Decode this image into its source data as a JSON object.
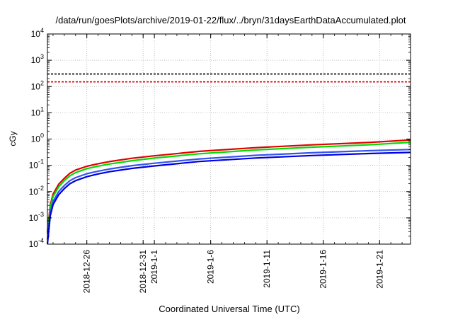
{
  "chart_data": {
    "type": "line",
    "title": "/data/run/goesPlots/archive/2019-01-22/flux/../bryn/31daysEarthDataAccumulated.plot",
    "xlabel": "Coordinated Universal Time (UTC)",
    "ylabel": "cGy",
    "yscale": "log",
    "ylim": [
      0.0001,
      10000
    ],
    "xlim": [
      "2018-12-22T12:00",
      "2019-01-23T18:00"
    ],
    "y_ticks": [
      {
        "value": 0.0001,
        "base": "10",
        "exp": "-4"
      },
      {
        "value": 0.001,
        "base": "10",
        "exp": "-3"
      },
      {
        "value": 0.01,
        "base": "10",
        "exp": "-2"
      },
      {
        "value": 0.1,
        "base": "10",
        "exp": "-1"
      },
      {
        "value": 1,
        "base": "10",
        "exp": "0"
      },
      {
        "value": 10,
        "base": "10",
        "exp": "1"
      },
      {
        "value": 100,
        "base": "10",
        "exp": "2"
      },
      {
        "value": 1000,
        "base": "10",
        "exp": "3"
      },
      {
        "value": 10000,
        "base": "10",
        "exp": "4"
      }
    ],
    "x_ticks": [
      {
        "value": "2018-12-26",
        "label": "2018-12-26"
      },
      {
        "value": "2018-12-31",
        "label": "2018-12-31"
      },
      {
        "value": "2019-01-01",
        "label": "2019-1-1"
      },
      {
        "value": "2019-01-06",
        "label": "2019-1-6"
      },
      {
        "value": "2019-01-11",
        "label": "2019-1-11"
      },
      {
        "value": "2019-01-16",
        "label": "2019-1-16"
      },
      {
        "value": "2019-01-21",
        "label": "2019-1-21"
      }
    ],
    "grid": true,
    "reference_lines": [
      {
        "y": 300,
        "color": "#000000",
        "dash": "dashed"
      },
      {
        "y": 150,
        "color": "#e00000",
        "dash": "dashed"
      }
    ],
    "series": [
      {
        "color": "#e00000",
        "x": [
          "2018-12-22T12:00",
          "2018-12-22T18:00",
          "2018-12-23T00:00",
          "2018-12-23T12:00",
          "2018-12-24T00:00",
          "2018-12-24T12:00",
          "2018-12-25T00:00",
          "2018-12-26T00:00",
          "2018-12-27T00:00",
          "2018-12-28T00:00",
          "2018-12-30T00:00",
          "2019-01-01T00:00",
          "2019-01-05T00:00",
          "2019-01-10T00:00",
          "2019-01-15T00:00",
          "2019-01-20T00:00",
          "2019-01-23T18:00"
        ],
        "y": [
          0.0003,
          0.003,
          0.008,
          0.019,
          0.032,
          0.05,
          0.066,
          0.092,
          0.115,
          0.138,
          0.185,
          0.23,
          0.34,
          0.47,
          0.6,
          0.74,
          0.92
        ]
      },
      {
        "color": "#00dd00",
        "x": [
          "2018-12-22T12:00",
          "2018-12-22T18:00",
          "2018-12-23T00:00",
          "2018-12-23T12:00",
          "2018-12-24T00:00",
          "2018-12-24T12:00",
          "2018-12-25T00:00",
          "2018-12-26T00:00",
          "2018-12-27T00:00",
          "2018-12-28T00:00",
          "2018-12-30T00:00",
          "2019-01-01T00:00",
          "2019-01-05T00:00",
          "2019-01-10T00:00",
          "2019-01-15T00:00",
          "2019-01-20T00:00",
          "2019-01-23T18:00"
        ],
        "y": [
          0.00025,
          0.0025,
          0.0065,
          0.015,
          0.026,
          0.04,
          0.053,
          0.075,
          0.093,
          0.112,
          0.15,
          0.188,
          0.275,
          0.385,
          0.49,
          0.6,
          0.75
        ]
      },
      {
        "color": "#3355ee",
        "x": [
          "2018-12-22T12:00",
          "2018-12-22T18:00",
          "2018-12-23T00:00",
          "2018-12-23T12:00",
          "2018-12-24T00:00",
          "2018-12-24T12:00",
          "2018-12-25T00:00",
          "2018-12-26T00:00",
          "2018-12-27T00:00",
          "2018-12-28T00:00",
          "2018-12-30T00:00",
          "2019-01-01T00:00",
          "2019-01-05T00:00",
          "2019-01-10T00:00",
          "2019-01-15T00:00",
          "2019-01-20T00:00",
          "2019-01-23T18:00"
        ],
        "y": [
          0.00015,
          0.0016,
          0.0042,
          0.01,
          0.017,
          0.026,
          0.034,
          0.048,
          0.06,
          0.072,
          0.097,
          0.12,
          0.175,
          0.24,
          0.3,
          0.36,
          0.4
        ]
      },
      {
        "color": "#0000dd",
        "x": [
          "2018-12-22T12:00",
          "2018-12-22T18:00",
          "2018-12-23T00:00",
          "2018-12-23T12:00",
          "2018-12-24T00:00",
          "2018-12-24T12:00",
          "2018-12-25T00:00",
          "2018-12-26T00:00",
          "2018-12-27T00:00",
          "2018-12-28T00:00",
          "2018-12-30T00:00",
          "2019-01-01T00:00",
          "2019-01-05T00:00",
          "2019-01-10T00:00",
          "2019-01-15T00:00",
          "2019-01-20T00:00",
          "2019-01-23T18:00"
        ],
        "y": [
          0.0001,
          0.0012,
          0.0032,
          0.0076,
          0.013,
          0.02,
          0.026,
          0.037,
          0.047,
          0.057,
          0.076,
          0.095,
          0.14,
          0.19,
          0.235,
          0.28,
          0.31
        ]
      }
    ]
  }
}
